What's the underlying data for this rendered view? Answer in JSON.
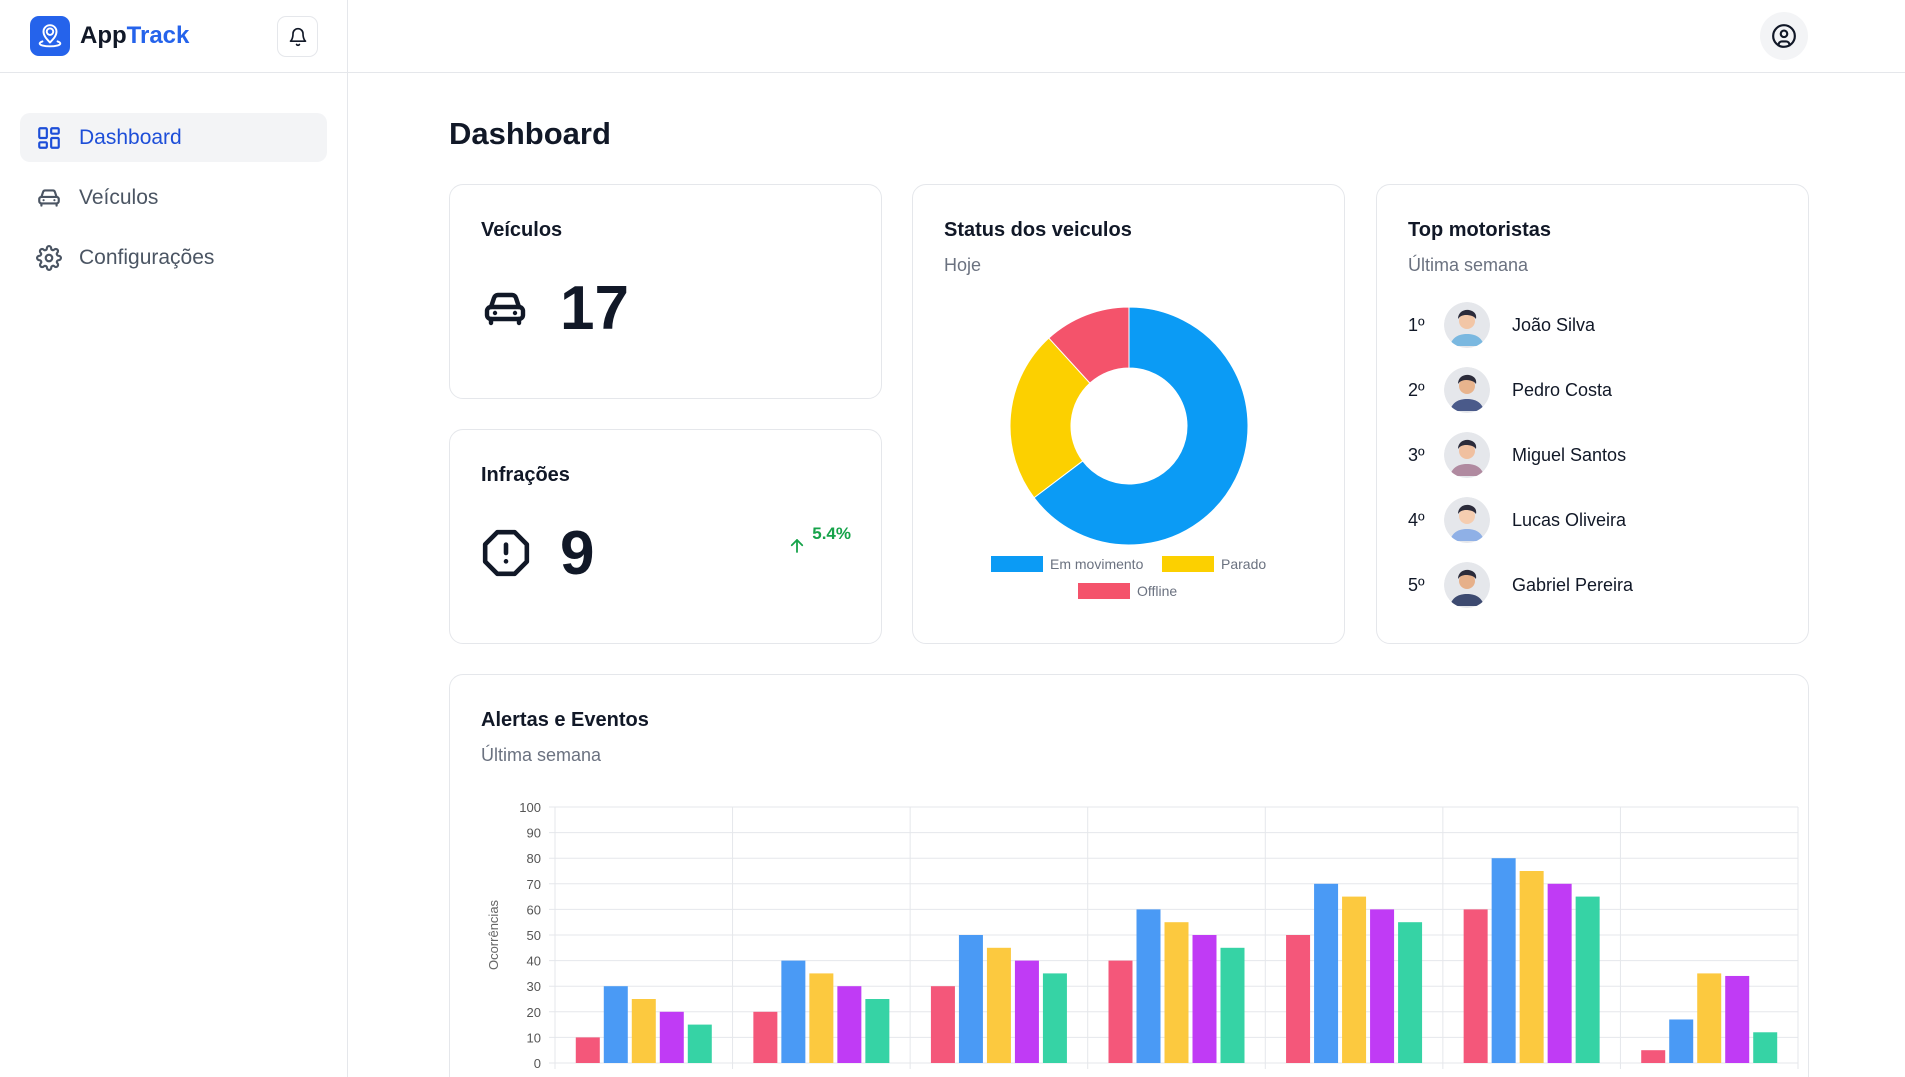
{
  "app": {
    "brand_main": "App",
    "brand_accent": "Track",
    "accent_color": "#2563eb"
  },
  "sidebar": {
    "items": [
      {
        "label": "Dashboard",
        "icon": "dashboard-grid-icon",
        "active": true
      },
      {
        "label": "Veículos",
        "icon": "car-icon",
        "active": false
      },
      {
        "label": "Configurações",
        "icon": "gear-icon",
        "active": false
      }
    ]
  },
  "header": {
    "notifications_icon": "bell-icon",
    "user_icon": "user-circle-icon"
  },
  "page": {
    "title": "Dashboard"
  },
  "cards": {
    "vehicles": {
      "title": "Veículos",
      "value": "17",
      "icon": "car-icon"
    },
    "infractions": {
      "title": "Infrações",
      "value": "9",
      "icon": "alert-octagon-icon",
      "trend": "5.4%",
      "trend_color": "#16a34a"
    },
    "status": {
      "title": "Status dos veiculos",
      "subtitle": "Hoje",
      "chart_data": {
        "type": "pie",
        "labels": [
          "Em movimento",
          "Parado",
          "Offline"
        ],
        "values": [
          11,
          4,
          2
        ],
        "colors": [
          "#0b9bf5",
          "#fcd000",
          "#f4536b"
        ],
        "legend": "bottom"
      }
    },
    "top_drivers": {
      "title": "Top motoristas",
      "subtitle": "Última semana",
      "drivers": [
        {
          "rank": "1º",
          "name": "João Silva"
        },
        {
          "rank": "2º",
          "name": "Pedro Costa"
        },
        {
          "rank": "3º",
          "name": "Miguel Santos"
        },
        {
          "rank": "4º",
          "name": "Lucas Oliveira"
        },
        {
          "rank": "5º",
          "name": "Gabriel Pereira"
        }
      ]
    },
    "alerts": {
      "title": "Alertas e Eventos",
      "subtitle": "Última semana",
      "chart_data": {
        "type": "bar",
        "ylabel": "Ocorrências",
        "ylim": [
          0,
          100
        ],
        "yticks": [
          0,
          10,
          20,
          30,
          40,
          50,
          60,
          70,
          80,
          90,
          100
        ],
        "grid": true,
        "groups": 7,
        "series": [
          {
            "color": "#f4577a",
            "values": [
              10,
              20,
              30,
              40,
              50,
              60,
              5
            ]
          },
          {
            "color": "#4a9af5",
            "values": [
              30,
              40,
              50,
              60,
              70,
              80,
              17
            ]
          },
          {
            "color": "#fcc93f",
            "values": [
              25,
              35,
              45,
              55,
              65,
              75,
              35
            ]
          },
          {
            "color": "#c03bf5",
            "values": [
              20,
              30,
              40,
              50,
              60,
              70,
              34
            ]
          },
          {
            "color": "#36d3a5",
            "values": [
              15,
              25,
              35,
              45,
              55,
              65,
              12
            ]
          }
        ]
      }
    }
  }
}
